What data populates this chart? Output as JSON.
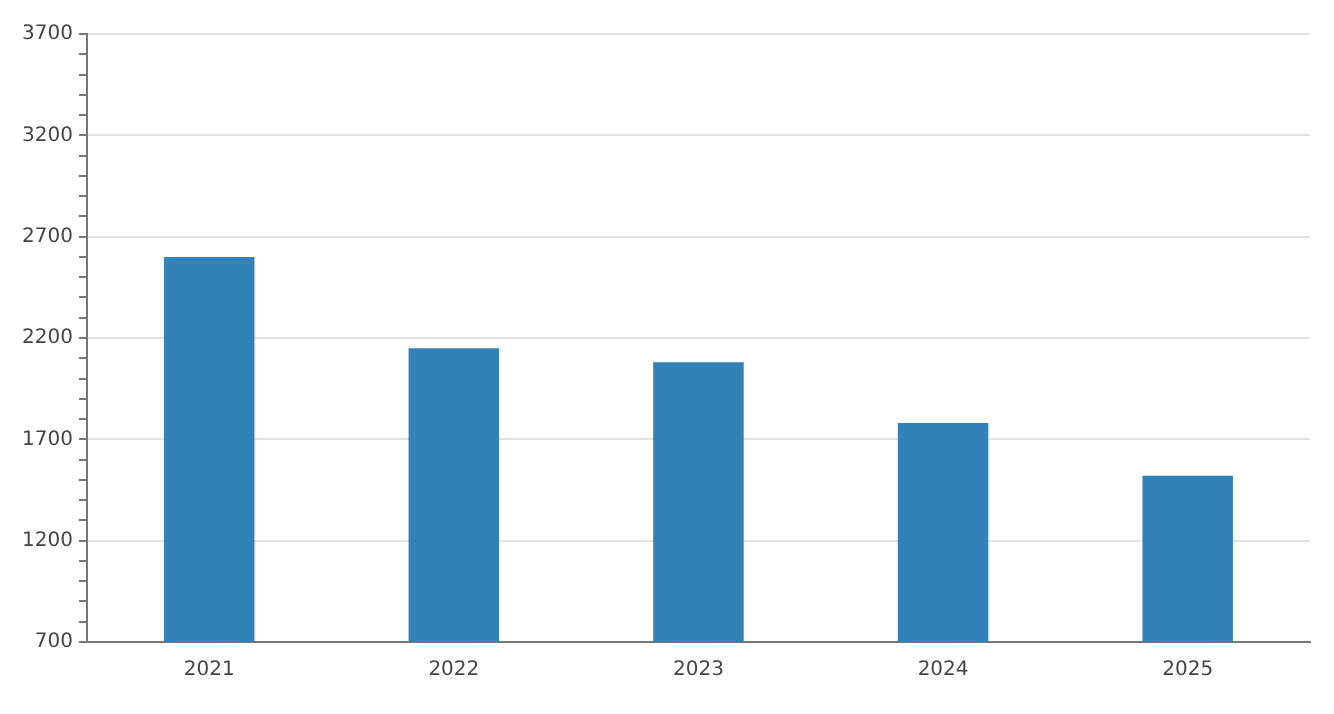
{
  "chart_data": {
    "type": "bar",
    "categories": [
      "2021",
      "2022",
      "2023",
      "2024",
      "2025"
    ],
    "values": [
      2600,
      2150,
      2080,
      1780,
      1520
    ],
    "color": "#3481b8",
    "ylim": [
      700,
      3700
    ],
    "yticks": [
      700,
      {
        "value": 800,
        "label": null
      },
      {
        "value": 900,
        "label": null
      },
      {
        "value": 1000,
        "label": null
      },
      {
        "value": 1100,
        "label": null
      },
      1200,
      {
        "value": 1300,
        "label": null
      },
      {
        "value": 1400,
        "label": null
      },
      {
        "value": 1500,
        "label": null
      },
      {
        "value": 1600,
        "label": null
      },
      1700,
      {
        "value": 1800,
        "label": null
      },
      {
        "value": 1900,
        "label": null
      },
      {
        "value": 2000,
        "label": null
      },
      {
        "value": 2100,
        "label": null
      },
      2200,
      {
        "value": 2300,
        "label": null
      },
      {
        "value": 2400,
        "label": null
      },
      {
        "value": 2500,
        "label": null
      },
      {
        "value": 2600,
        "label": null
      },
      2700,
      {
        "value": 2800,
        "label": null
      },
      {
        "value": 2900,
        "label": null
      },
      {
        "value": 3000,
        "label": null
      },
      {
        "value": 3100,
        "label": null
      },
      3200,
      {
        "value": 3300,
        "label": null
      },
      {
        "value": 3400,
        "label": null
      },
      {
        "value": 3500,
        "label": null
      },
      {
        "value": 3600,
        "label": null
      },
      3700
    ],
    "grid": "y",
    "legend": false
  }
}
